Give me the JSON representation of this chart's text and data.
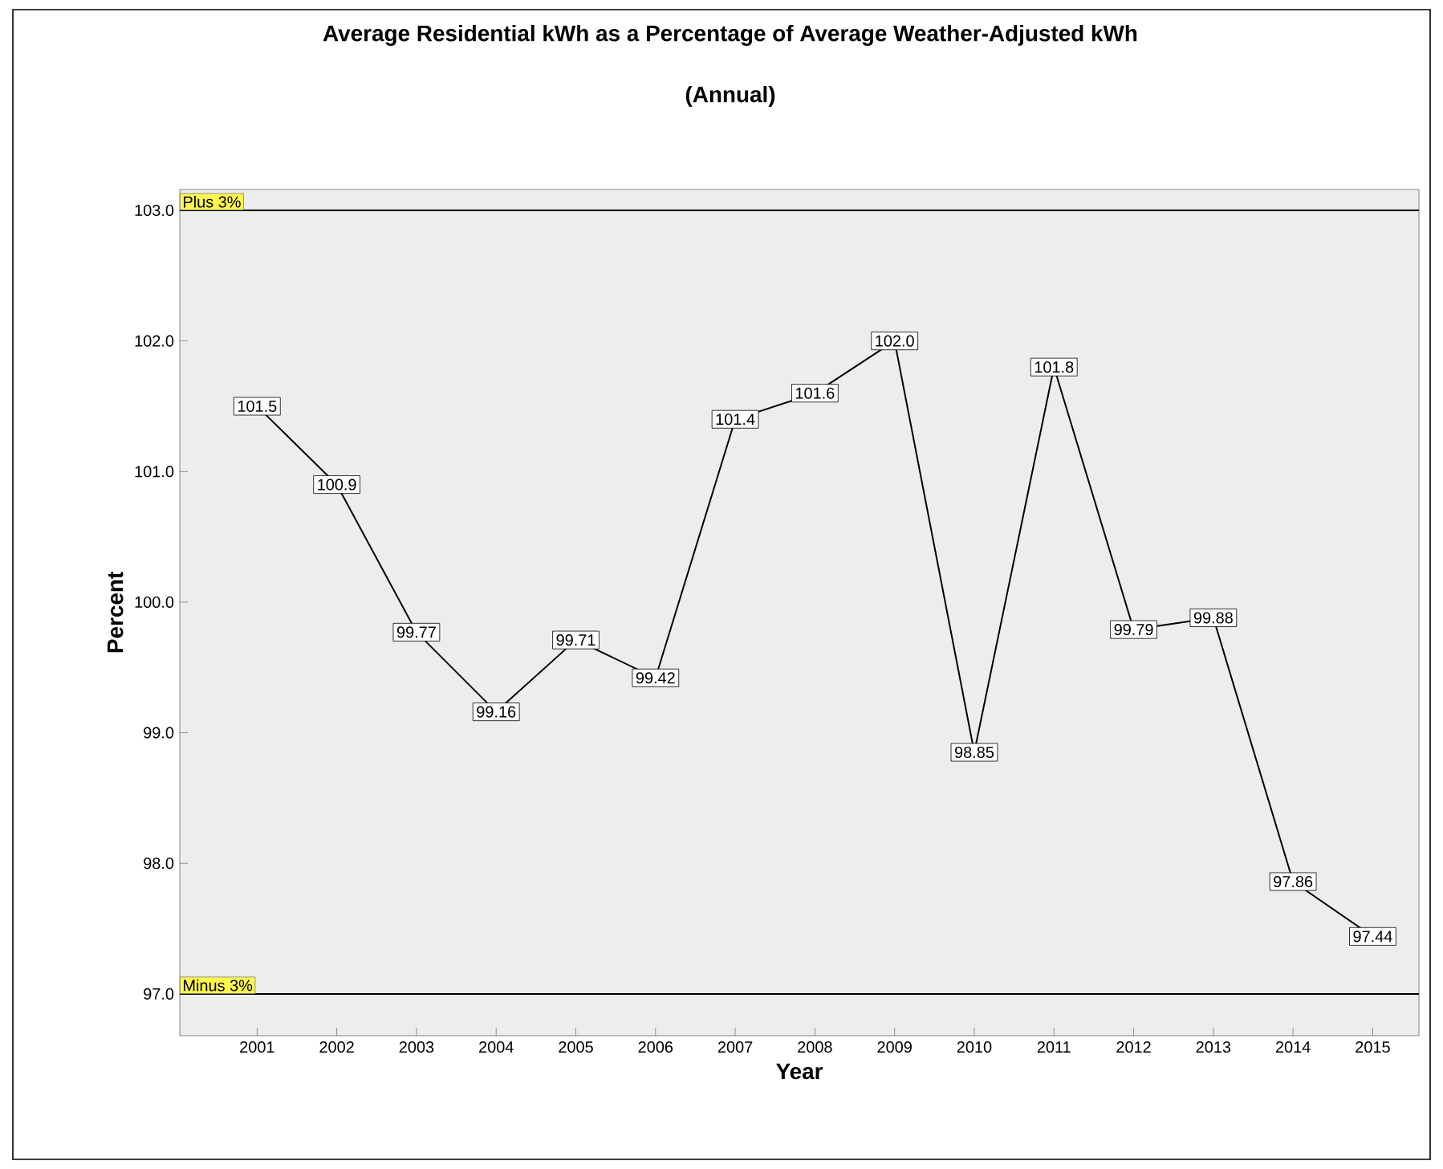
{
  "chart_data": {
    "type": "line",
    "title": "Average Residential kWh as a Percentage of Average Weather-Adjusted kWh",
    "subtitle": "(Annual)",
    "xlabel": "Year",
    "ylabel": "Percent",
    "categories": [
      "2001",
      "2002",
      "2003",
      "2004",
      "2005",
      "2006",
      "2007",
      "2008",
      "2009",
      "2010",
      "2011",
      "2012",
      "2013",
      "2014",
      "2015"
    ],
    "values": [
      101.5,
      100.9,
      99.77,
      99.16,
      99.71,
      99.42,
      101.4,
      101.6,
      102.0,
      98.85,
      101.8,
      99.79,
      99.88,
      97.86,
      97.44
    ],
    "value_labels": [
      "101.5",
      "100.9",
      "99.77",
      "99.16",
      "99.71",
      "99.42",
      "101.4",
      "101.6",
      "102.0",
      "98.85",
      "101.8",
      "99.79",
      "99.88",
      "97.86",
      "97.44"
    ],
    "color": "#000000",
    "ylim": [
      96.68,
      103.16
    ],
    "yticks": [
      {
        "value": 97,
        "label": "97.0"
      },
      {
        "value": 98,
        "label": "98.0"
      },
      {
        "value": 99,
        "label": "99.0"
      },
      {
        "value": 100,
        "label": "100.0"
      },
      {
        "value": 101,
        "label": "101.0"
      },
      {
        "value": 102,
        "label": "102.0"
      },
      {
        "value": 103,
        "label": "103.0"
      }
    ],
    "ref_lines": [
      {
        "axis": "y",
        "value": 103,
        "label": "Plus 3%",
        "color": "#000000"
      },
      {
        "axis": "y",
        "value": 97,
        "label": "Minus 3%",
        "color": "#000000"
      }
    ],
    "grid": false,
    "marker": "square",
    "line_style": "solid"
  }
}
